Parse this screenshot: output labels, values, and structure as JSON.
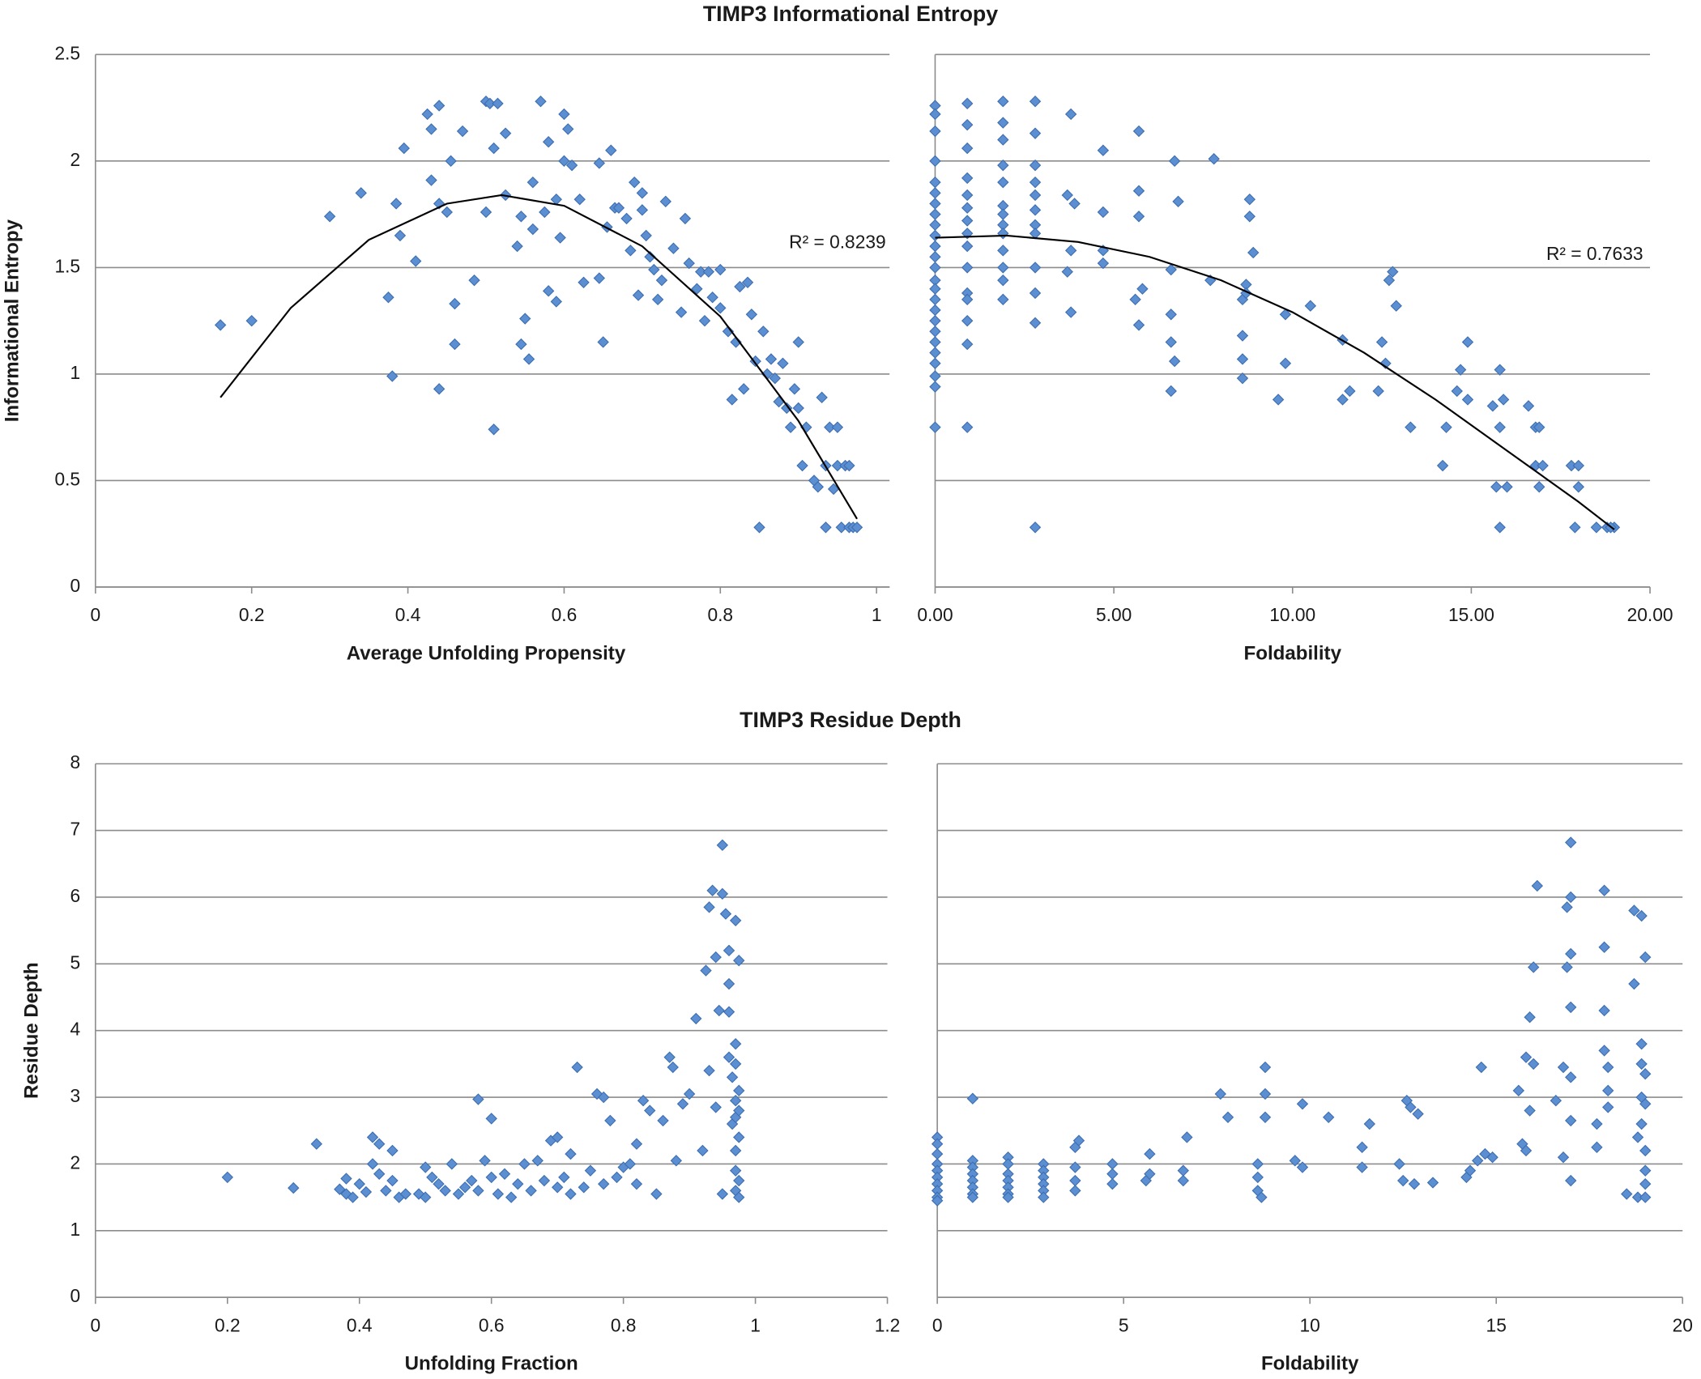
{
  "chart_data": [
    {
      "type": "scatter",
      "title": "TIMP3 Informational Entropy",
      "xlabel": "Average Unfolding Propensity",
      "ylabel": "Informational Entropy",
      "annotation": "R² = 0.8239",
      "color": "#5b8fd2",
      "xlim": [
        0,
        1
      ],
      "ylim": [
        0,
        2.5
      ],
      "xticks": [
        0,
        0.2,
        0.4,
        0.6,
        0.8,
        1
      ],
      "yticks": [
        0,
        0.5,
        1,
        1.5,
        2,
        2.5
      ],
      "grid": true,
      "x": [
        0.16,
        0.2,
        0.3,
        0.34,
        0.375,
        0.38,
        0.385,
        0.39,
        0.395,
        0.41,
        0.425,
        0.43,
        0.43,
        0.44,
        0.44,
        0.44,
        0.45,
        0.455,
        0.46,
        0.46,
        0.47,
        0.485,
        0.5,
        0.5,
        0.505,
        0.51,
        0.51,
        0.515,
        0.525,
        0.525,
        0.54,
        0.545,
        0.55,
        0.545,
        0.555,
        0.56,
        0.56,
        0.57,
        0.575,
        0.58,
        0.58,
        0.59,
        0.59,
        0.595,
        0.6,
        0.6,
        0.605,
        0.61,
        0.62,
        0.625,
        0.645,
        0.645,
        0.65,
        0.655,
        0.66,
        0.665,
        0.67,
        0.68,
        0.685,
        0.69,
        0.695,
        0.7,
        0.7,
        0.705,
        0.71,
        0.715,
        0.72,
        0.725,
        0.73,
        0.74,
        0.75,
        0.755,
        0.76,
        0.77,
        0.775,
        0.78,
        0.785,
        0.79,
        0.8,
        0.8,
        0.81,
        0.815,
        0.82,
        0.825,
        0.83,
        0.835,
        0.84,
        0.845,
        0.85,
        0.855,
        0.86,
        0.865,
        0.87,
        0.875,
        0.88,
        0.885,
        0.89,
        0.895,
        0.9,
        0.9,
        0.905,
        0.91,
        0.92,
        0.925,
        0.93,
        0.935,
        0.935,
        0.94,
        0.945,
        0.95,
        0.955,
        0.96,
        0.965,
        0.97,
        0.975,
        0.965,
        0.95
      ],
      "values": [
        1.23,
        1.25,
        1.74,
        1.85,
        1.36,
        0.99,
        1.8,
        1.65,
        2.06,
        1.53,
        2.22,
        2.15,
        1.91,
        2.26,
        1.8,
        0.93,
        1.76,
        2.0,
        1.33,
        1.14,
        2.14,
        1.44,
        2.28,
        1.76,
        2.27,
        2.06,
        0.74,
        2.27,
        1.84,
        2.13,
        1.6,
        1.74,
        1.26,
        1.14,
        1.07,
        1.68,
        1.9,
        2.28,
        1.76,
        1.39,
        2.09,
        1.34,
        1.82,
        1.64,
        2.22,
        2.0,
        2.15,
        1.98,
        1.82,
        1.43,
        1.45,
        1.99,
        1.15,
        1.69,
        2.05,
        1.78,
        1.78,
        1.73,
        1.58,
        1.9,
        1.37,
        1.85,
        1.77,
        1.65,
        1.55,
        1.49,
        1.35,
        1.44,
        1.81,
        1.59,
        1.29,
        1.73,
        1.52,
        1.4,
        1.48,
        1.25,
        1.48,
        1.36,
        1.49,
        1.31,
        1.2,
        0.88,
        1.15,
        1.41,
        0.93,
        1.43,
        1.28,
        1.06,
        0.28,
        1.2,
        1.0,
        1.07,
        0.98,
        0.87,
        1.05,
        0.84,
        0.75,
        0.93,
        1.15,
        0.84,
        0.57,
        0.75,
        0.5,
        0.47,
        0.89,
        0.57,
        0.28,
        0.75,
        0.46,
        0.57,
        0.28,
        0.57,
        0.28,
        0.28,
        0.28,
        0.57,
        0.75
      ],
      "trendline": {
        "x": [
          0.16,
          0.25,
          0.35,
          0.45,
          0.52,
          0.6,
          0.7,
          0.8,
          0.9,
          0.975
        ],
        "values": [
          0.89,
          1.31,
          1.63,
          1.8,
          1.84,
          1.79,
          1.6,
          1.27,
          0.78,
          0.32
        ]
      }
    },
    {
      "type": "scatter",
      "xlabel": "Foldability",
      "annotation": "R² = 0.7633",
      "color": "#5b8fd2",
      "show_ytick_labels": false,
      "xlim": [
        0,
        20
      ],
      "ylim": [
        0,
        2.5
      ],
      "xticks": [
        {
          "value": 0,
          "label": "0.00"
        },
        {
          "value": 5,
          "label": "5.00"
        },
        {
          "value": 10,
          "label": "10.00"
        },
        {
          "value": 15,
          "label": "15.00"
        },
        {
          "value": 20,
          "label": "20.00"
        }
      ],
      "yticks": [
        0,
        0.5,
        1,
        1.5,
        2,
        2.5
      ],
      "grid": true,
      "x": [
        0,
        0,
        0,
        0,
        0,
        0,
        0,
        0,
        0,
        0,
        0,
        0,
        0,
        0,
        0,
        0,
        0,
        0,
        0,
        0,
        0,
        0,
        0,
        0,
        0,
        0.9,
        0.9,
        0.9,
        0.9,
        0.9,
        0.9,
        0.9,
        0.9,
        0.9,
        0.9,
        0.9,
        0.9,
        0.9,
        0.9,
        0.9,
        1.9,
        1.9,
        1.9,
        1.9,
        1.9,
        1.9,
        1.9,
        1.9,
        1.9,
        1.9,
        1.9,
        1.9,
        1.9,
        2.8,
        2.8,
        2.8,
        2.8,
        2.8,
        2.8,
        2.8,
        2.8,
        2.8,
        2.8,
        2.8,
        2.8,
        3.8,
        3.7,
        3.9,
        3.8,
        3.7,
        3.8,
        4.7,
        4.7,
        4.7,
        4.7,
        5.7,
        5.7,
        5.7,
        5.8,
        5.6,
        5.7,
        6.6,
        6.6,
        6.6,
        6.6,
        6.7,
        6.8,
        6.7,
        7.7,
        7.8,
        8.6,
        8.6,
        8.6,
        8.6,
        8.7,
        8.7,
        8.8,
        8.8,
        8.9,
        9.6,
        9.8,
        9.8,
        10.5,
        11.4,
        11.4,
        11.6,
        12.4,
        12.5,
        12.6,
        12.7,
        12.8,
        12.9,
        13.3,
        14.2,
        14.3,
        14.6,
        14.7,
        14.9,
        14.9,
        15.6,
        15.7,
        15.8,
        15.8,
        15.8,
        15.9,
        16.0,
        16.6,
        16.8,
        16.8,
        16.9,
        16.9,
        17.0,
        17.8,
        17.9,
        18.0,
        18.0,
        18.5,
        18.8,
        19.0,
        18.9
      ],
      "values": [
        2.26,
        2.22,
        2.14,
        2.0,
        1.9,
        1.85,
        1.8,
        1.75,
        1.7,
        1.65,
        1.6,
        1.55,
        1.5,
        1.44,
        1.4,
        1.35,
        1.3,
        1.25,
        1.2,
        1.15,
        1.1,
        1.05,
        0.99,
        0.94,
        0.75,
        2.27,
        2.17,
        2.06,
        1.92,
        1.84,
        1.78,
        1.72,
        1.66,
        1.6,
        1.5,
        1.38,
        1.35,
        1.25,
        1.14,
        0.75,
        2.28,
        2.18,
        2.1,
        1.98,
        1.9,
        1.79,
        1.75,
        1.7,
        1.66,
        1.58,
        1.5,
        1.44,
        1.35,
        2.28,
        2.13,
        1.98,
        1.9,
        1.84,
        1.77,
        1.7,
        1.66,
        1.5,
        1.38,
        1.24,
        0.28,
        2.22,
        1.84,
        1.8,
        1.58,
        1.48,
        1.29,
        2.05,
        1.76,
        1.58,
        1.52,
        2.14,
        1.86,
        1.74,
        1.4,
        1.35,
        1.23,
        1.49,
        1.28,
        1.15,
        0.92,
        2.0,
        1.81,
        1.06,
        1.44,
        2.01,
        1.35,
        1.18,
        1.07,
        0.98,
        1.42,
        1.38,
        1.82,
        1.74,
        1.57,
        0.88,
        1.05,
        1.28,
        1.32,
        1.16,
        0.88,
        0.92,
        0.92,
        1.15,
        1.05,
        1.44,
        1.48,
        1.32,
        0.75,
        0.57,
        0.75,
        0.92,
        1.02,
        1.15,
        0.88,
        0.85,
        0.47,
        1.02,
        0.75,
        0.28,
        0.88,
        0.47,
        0.85,
        0.75,
        0.57,
        0.47,
        0.75,
        0.57,
        0.57,
        0.28,
        0.57,
        0.47,
        0.28,
        0.28,
        0.28,
        0.28
      ],
      "trendline": {
        "x": [
          0,
          2,
          4,
          6,
          8,
          10,
          12,
          14,
          16,
          18,
          19
        ],
        "values": [
          1.64,
          1.65,
          1.62,
          1.55,
          1.44,
          1.29,
          1.1,
          0.88,
          0.64,
          0.4,
          0.27
        ]
      }
    },
    {
      "type": "scatter",
      "title": "TIMP3 Residue Depth",
      "xlabel": "Unfolding Fraction",
      "ylabel": "Residue Depth",
      "color": "#5b8fd2",
      "xlim": [
        0,
        1.2
      ],
      "ylim": [
        0,
        8
      ],
      "xticks": [
        0,
        0.2,
        0.4,
        0.6,
        0.8,
        1,
        1.2
      ],
      "yticks": [
        0,
        1,
        2,
        3,
        4,
        5,
        6,
        7,
        8
      ],
      "grid": true,
      "x": [
        0.2,
        0.3,
        0.335,
        0.37,
        0.38,
        0.38,
        0.39,
        0.4,
        0.41,
        0.42,
        0.42,
        0.43,
        0.43,
        0.44,
        0.45,
        0.45,
        0.46,
        0.47,
        0.49,
        0.5,
        0.5,
        0.51,
        0.52,
        0.53,
        0.54,
        0.55,
        0.56,
        0.57,
        0.58,
        0.58,
        0.59,
        0.6,
        0.6,
        0.61,
        0.62,
        0.63,
        0.64,
        0.65,
        0.66,
        0.67,
        0.68,
        0.69,
        0.7,
        0.7,
        0.71,
        0.72,
        0.72,
        0.73,
        0.74,
        0.75,
        0.76,
        0.77,
        0.77,
        0.78,
        0.79,
        0.8,
        0.81,
        0.82,
        0.82,
        0.83,
        0.84,
        0.85,
        0.86,
        0.87,
        0.875,
        0.88,
        0.89,
        0.9,
        0.91,
        0.92,
        0.925,
        0.93,
        0.93,
        0.935,
        0.94,
        0.94,
        0.945,
        0.95,
        0.95,
        0.95,
        0.955,
        0.96,
        0.96,
        0.96,
        0.96,
        0.965,
        0.965,
        0.97,
        0.97,
        0.97,
        0.97,
        0.97,
        0.97,
        0.97,
        0.97,
        0.975,
        0.975,
        0.975,
        0.975,
        0.975,
        0.975
      ],
      "values": [
        1.8,
        1.64,
        2.3,
        1.62,
        1.78,
        1.55,
        1.5,
        1.7,
        1.58,
        2.4,
        2.0,
        2.3,
        1.85,
        1.6,
        2.2,
        1.75,
        1.5,
        1.55,
        1.55,
        1.95,
        1.5,
        1.8,
        1.7,
        1.6,
        2.0,
        1.55,
        1.65,
        1.75,
        2.97,
        1.6,
        2.05,
        2.68,
        1.8,
        1.55,
        1.85,
        1.5,
        1.7,
        2.0,
        1.6,
        2.05,
        1.75,
        2.35,
        2.4,
        1.65,
        1.8,
        2.15,
        1.55,
        3.45,
        1.65,
        1.9,
        3.05,
        3.0,
        1.7,
        2.65,
        1.8,
        1.95,
        2.0,
        2.3,
        1.7,
        2.95,
        2.8,
        1.55,
        2.65,
        3.6,
        3.45,
        2.05,
        2.9,
        3.05,
        4.18,
        2.2,
        4.9,
        3.4,
        5.85,
        6.1,
        5.1,
        2.85,
        4.3,
        6.78,
        6.05,
        1.55,
        5.75,
        5.2,
        4.7,
        4.28,
        3.6,
        3.3,
        2.6,
        5.65,
        3.8,
        3.5,
        2.95,
        2.7,
        2.2,
        1.9,
        1.6,
        5.05,
        3.1,
        2.8,
        2.4,
        1.75,
        1.5
      ]
    },
    {
      "type": "scatter",
      "xlabel": "Foldability",
      "color": "#5b8fd2",
      "show_ytick_labels": false,
      "xlim": [
        0,
        20
      ],
      "ylim": [
        0,
        8
      ],
      "xticks": [
        0,
        5,
        10,
        15,
        20
      ],
      "yticks": [
        0,
        1,
        2,
        3,
        4,
        5,
        6,
        7,
        8
      ],
      "grid": true,
      "x": [
        0,
        0,
        0,
        0,
        0,
        0,
        0,
        0,
        0,
        0,
        0.95,
        0.95,
        0.95,
        0.95,
        0.95,
        0.95,
        0.95,
        0.95,
        1.9,
        1.9,
        1.9,
        1.9,
        1.9,
        1.9,
        1.9,
        2.85,
        2.85,
        2.85,
        2.85,
        2.85,
        2.85,
        3.7,
        3.8,
        3.7,
        3.7,
        3.7,
        4.7,
        4.7,
        4.7,
        5.6,
        5.7,
        5.7,
        6.6,
        6.7,
        6.6,
        7.6,
        7.8,
        8.6,
        8.6,
        8.6,
        8.7,
        8.8,
        8.8,
        8.8,
        9.6,
        9.8,
        9.8,
        10.5,
        11.4,
        11.4,
        11.6,
        12.4,
        12.5,
        12.6,
        12.7,
        12.8,
        12.9,
        13.3,
        14.2,
        14.3,
        14.5,
        14.6,
        14.7,
        14.9,
        15.6,
        15.7,
        15.8,
        15.8,
        15.9,
        15.9,
        16.0,
        16.0,
        16.1,
        16.6,
        16.8,
        16.8,
        16.9,
        16.9,
        17.0,
        17.0,
        17.0,
        17.0,
        17.0,
        17.0,
        17.0,
        17.7,
        17.7,
        17.9,
        17.9,
        17.9,
        17.9,
        18.0,
        18.0,
        18.0,
        18.5,
        18.7,
        18.7,
        18.8,
        18.8,
        18.9,
        18.9,
        18.9,
        18.9,
        18.9,
        19.0,
        19.0,
        19.0,
        19.0,
        19.0,
        19.0,
        19.0
      ],
      "values": [
        2.4,
        2.3,
        2.15,
        2.0,
        1.9,
        1.8,
        1.7,
        1.6,
        1.5,
        1.45,
        2.98,
        2.05,
        1.95,
        1.85,
        1.75,
        1.65,
        1.55,
        1.5,
        2.1,
        2.0,
        1.85,
        1.75,
        1.65,
        1.55,
        1.5,
        2.0,
        1.9,
        1.8,
        1.7,
        1.6,
        1.5,
        2.25,
        2.35,
        1.95,
        1.6,
        1.75,
        2.0,
        1.85,
        1.7,
        1.75,
        2.15,
        1.85,
        1.9,
        2.4,
        1.75,
        3.05,
        2.7,
        2.0,
        1.8,
        1.6,
        1.5,
        3.45,
        3.05,
        2.7,
        2.05,
        1.95,
        2.9,
        2.7,
        2.25,
        1.95,
        2.6,
        2.0,
        1.75,
        2.95,
        2.85,
        1.7,
        2.75,
        1.72,
        1.8,
        1.9,
        2.05,
        3.45,
        2.15,
        2.1,
        3.1,
        2.3,
        3.6,
        2.2,
        4.2,
        2.8,
        4.95,
        3.5,
        6.17,
        2.95,
        2.1,
        3.45,
        4.95,
        5.85,
        6.0,
        6.82,
        5.15,
        4.35,
        3.3,
        2.65,
        1.75,
        2.6,
        2.25,
        6.1,
        5.25,
        4.3,
        3.7,
        3.45,
        3.1,
        2.85,
        1.55,
        5.8,
        4.7,
        2.4,
        1.5,
        5.72,
        3.8,
        3.5,
        3.0,
        2.6,
        5.1,
        3.35,
        2.9,
        2.2,
        1.9,
        1.7,
        1.5
      ]
    }
  ]
}
